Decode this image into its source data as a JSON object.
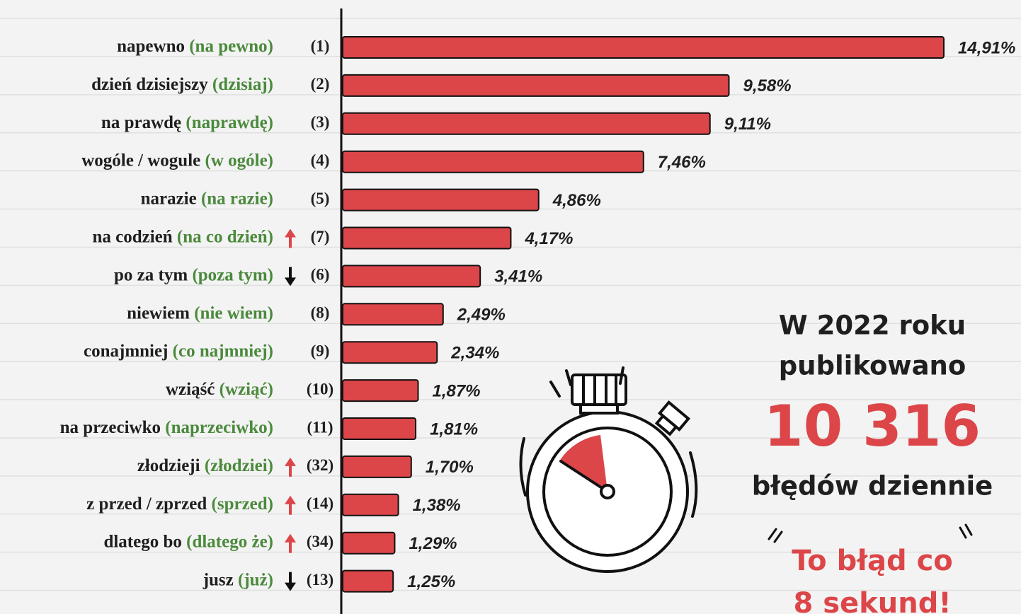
{
  "chart_data": {
    "type": "bar",
    "orientation": "horizontal",
    "color": "#dc4649",
    "categories": [
      "napewno",
      "dzień dzisiejszy",
      "na prawdę",
      "wogóle / wogule",
      "narazie",
      "na codzień",
      "po za tym",
      "niewiem",
      "conajmniej",
      "wziąść",
      "na przeciwko",
      "złodzieji",
      "z przed / zprzed",
      "dlatego bo",
      "jusz"
    ],
    "corrections": [
      "(na pewno)",
      "(dzisiaj)",
      "(naprawdę)",
      "(w ogóle)",
      "(na razie)",
      "(na co dzień)",
      "(poza tym)",
      "(nie wiem)",
      "(co najmniej)",
      "(wziąć)",
      "(naprzeciwko)",
      "(złodziei)",
      "(sprzed)",
      "(dlatego że)",
      "(już)"
    ],
    "ranks": [
      "(1)",
      "(2)",
      "(3)",
      "(4)",
      "(5)",
      "(7)",
      "(6)",
      "(8)",
      "(9)",
      "(10)",
      "(11)",
      "(32)",
      "(14)",
      "(34)",
      "(13)"
    ],
    "trend": [
      null,
      null,
      null,
      null,
      null,
      "up",
      "down",
      null,
      null,
      null,
      null,
      "up",
      "up",
      "up",
      "down"
    ],
    "values": [
      14.91,
      9.58,
      9.11,
      7.46,
      4.86,
      4.17,
      3.41,
      2.49,
      2.34,
      1.87,
      1.81,
      1.7,
      1.38,
      1.29,
      1.25
    ],
    "value_labels": [
      "14,91%",
      "9,58%",
      "9,11%",
      "7,46%",
      "4,86%",
      "4,17%",
      "3,41%",
      "2,49%",
      "2,34%",
      "1,87%",
      "1,81%",
      "1,70%",
      "1,38%",
      "1,29%",
      "1,25%"
    ]
  },
  "sidebar": {
    "line1": "W 2022 roku",
    "line2": "publikowano",
    "number": "10 316",
    "line3": "błędów dziennie",
    "quote1": "To błąd co",
    "quote2": "8 sekund!"
  }
}
